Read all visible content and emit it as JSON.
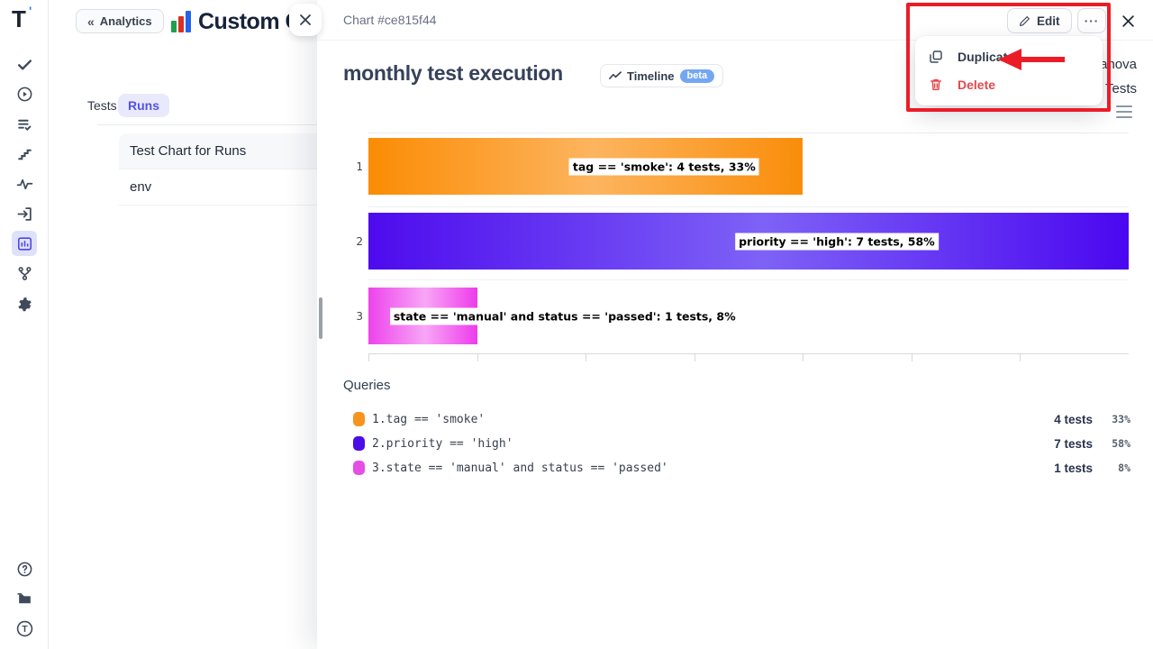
{
  "sidebar": {
    "logo": "T",
    "icons": [
      "check-icon",
      "play-circle-icon",
      "list-check-icon",
      "steps-icon",
      "activity-icon",
      "import-icon",
      "analytics-chart-icon",
      "branch-icon",
      "gear-icon",
      "help-icon",
      "docs-folder-icon",
      "account-avatar"
    ]
  },
  "analytics": {
    "back_chevrons": "«",
    "back_label": "Analytics",
    "title": "Custom C",
    "tabs": [
      {
        "label": "Tests",
        "active": false
      },
      {
        "label": "Runs",
        "active": true
      }
    ],
    "items": [
      {
        "label": "Test Chart for Runs"
      },
      {
        "label": "env"
      }
    ]
  },
  "panel": {
    "header_title": "Chart #ce815f44",
    "edit_button": "Edit",
    "more_button": "···",
    "chart_title": "monthly test execution",
    "timeline_button": {
      "label": "Timeline",
      "badge": "beta"
    },
    "clipped_right_text": {
      "line1": "anova",
      "line2": "Tests"
    },
    "queries_heading": "Queries"
  },
  "menu": {
    "duplicate_label": "Duplicate",
    "delete_label": "Delete",
    "delete_color": "#e5484d"
  },
  "annotation": {
    "color": "#ec1c27"
  },
  "chart_data": {
    "type": "bar",
    "orientation": "horizontal",
    "title": "monthly test execution",
    "xlabel": "",
    "ylabel": "",
    "x_range": [
      0,
      7
    ],
    "x_ticks": [
      0,
      1,
      2,
      3,
      4,
      5,
      6
    ],
    "grid": true,
    "categories": [
      "1",
      "2",
      "3"
    ],
    "series": [
      {
        "name": "tests",
        "values": [
          4,
          7,
          1
        ]
      }
    ],
    "bars": [
      {
        "category": "1",
        "query": "tag == 'smoke'",
        "tests": 4,
        "tests_label": "4 tests",
        "percent_label": "33%",
        "bar_label": "tag == 'smoke': 4 tests, 33%",
        "gradient": [
          "#fb8c04",
          "#fdb45f",
          "#f98d0a"
        ],
        "swatch": "#f7941e",
        "label_center_frac": 0.389
      },
      {
        "category": "2",
        "query": "priority == 'high'",
        "tests": 7,
        "tests_label": "7 tests",
        "percent_label": "58%",
        "bar_label": "priority == 'high': 7 tests, 58%",
        "gradient": [
          "#4d0bee",
          "#7e62f6",
          "#4a07f0"
        ],
        "swatch": "#4a0de8",
        "label_center_frac": 0.616
      },
      {
        "category": "3",
        "query": "state == 'manual' and status == 'passed'",
        "tests": 1,
        "tests_label": "1 tests",
        "percent_label": "8%",
        "bar_label": "state == 'manual' and status == 'passed': 1 tests, 8%",
        "gradient": [
          "#ed43ec",
          "#f8a6f6",
          "#ee3bec"
        ],
        "swatch": "#e44fe4",
        "label_center_frac": 0.258
      }
    ]
  }
}
